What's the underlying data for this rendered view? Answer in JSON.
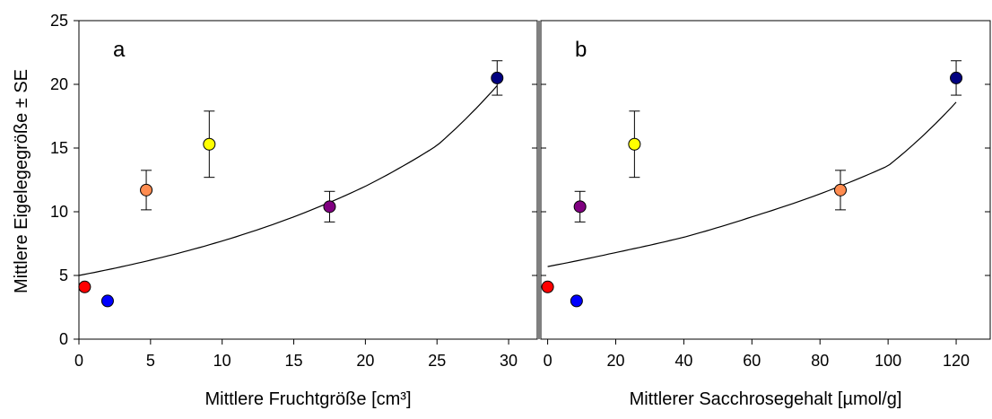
{
  "y_axis_title": "Mittlere Eigelegegröße ± SE",
  "chart_data": [
    {
      "type": "scatter",
      "panel_label": "a",
      "xlabel": "Mittlere Fruchtgröße [cm³]",
      "ylabel": "Mittlere Eigelegegröße ± SE",
      "xlim": [
        0,
        32
      ],
      "ylim": [
        0,
        25
      ],
      "xticks": [
        0,
        5,
        10,
        15,
        20,
        25,
        30
      ],
      "yticks": [
        0,
        5,
        10,
        15,
        20,
        25
      ],
      "grid": false,
      "points": [
        {
          "x": 0.4,
          "y": 4.1,
          "err": 0,
          "color": "#ff0000"
        },
        {
          "x": 2.0,
          "y": 3.0,
          "err": 0,
          "color": "#0000ff"
        },
        {
          "x": 4.7,
          "y": 11.7,
          "err": 1.55,
          "color": "#ff8c50"
        },
        {
          "x": 9.1,
          "y": 15.3,
          "err": 2.6,
          "color": "#ffff00"
        },
        {
          "x": 17.5,
          "y": 10.4,
          "err": 1.2,
          "color": "#800080"
        },
        {
          "x": 29.2,
          "y": 20.5,
          "err": 1.35,
          "color": "#000080"
        }
      ],
      "fit_curve": {
        "type": "exponential",
        "x": [
          0,
          5,
          10,
          15,
          20,
          25,
          29.2
        ],
        "y": [
          5.0,
          6.2,
          7.7,
          9.6,
          12.0,
          15.2,
          19.9
        ]
      }
    },
    {
      "type": "scatter",
      "panel_label": "b",
      "xlabel": "Mittlerer Sacchrosegehalt [µmol/g]",
      "ylabel": "",
      "xlim": [
        -2,
        130
      ],
      "ylim": [
        0,
        25
      ],
      "xticks": [
        0,
        20,
        40,
        60,
        80,
        100,
        120
      ],
      "yticks": [
        0,
        5,
        10,
        15,
        20,
        25
      ],
      "grid": false,
      "points": [
        {
          "x": 0,
          "y": 4.1,
          "err": 0,
          "color": "#ff0000"
        },
        {
          "x": 8.5,
          "y": 3.0,
          "err": 0,
          "color": "#0000ff"
        },
        {
          "x": 9.5,
          "y": 10.4,
          "err": 1.2,
          "color": "#800080"
        },
        {
          "x": 25.5,
          "y": 15.3,
          "err": 2.6,
          "color": "#ffff00"
        },
        {
          "x": 86.0,
          "y": 11.7,
          "err": 1.55,
          "color": "#ff8c50"
        },
        {
          "x": 120.0,
          "y": 20.5,
          "err": 1.35,
          "color": "#000080"
        }
      ],
      "fit_curve": {
        "type": "exponential",
        "x": [
          0,
          20,
          40,
          60,
          80,
          100,
          120
        ],
        "y": [
          5.7,
          6.8,
          8.0,
          9.6,
          11.4,
          13.6,
          18.6
        ]
      }
    }
  ]
}
